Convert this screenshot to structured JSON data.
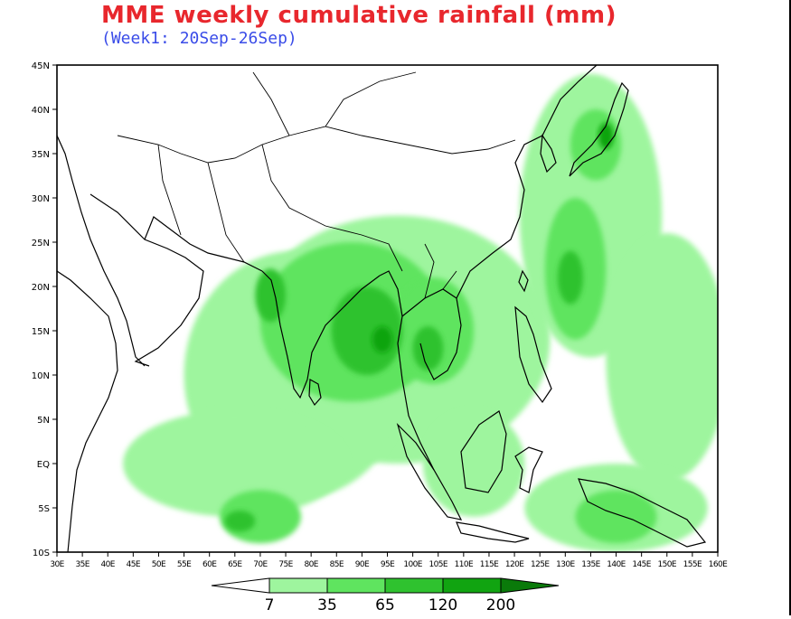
{
  "title": "MME weekly cumulative rainfall (mm)",
  "subtitle": "(Week1: 20Sep-26Sep)",
  "map": {
    "lon_range": [
      30,
      160
    ],
    "lat_range": [
      -10,
      45
    ],
    "lat_labels": [
      "10S",
      "5S",
      "EQ",
      "5N",
      "10N",
      "15N",
      "20N",
      "25N",
      "30N",
      "35N",
      "40N",
      "45N"
    ],
    "lat_values": [
      -10,
      -5,
      0,
      5,
      10,
      15,
      20,
      25,
      30,
      35,
      40,
      45
    ],
    "lon_labels": [
      "30E",
      "35E",
      "40E",
      "45E",
      "50E",
      "55E",
      "60E",
      "65E",
      "70E",
      "75E",
      "80E",
      "85E",
      "90E",
      "95E",
      "100E",
      "105E",
      "110E",
      "115E",
      "120E",
      "125E",
      "130E",
      "135E",
      "140E",
      "145E",
      "150E",
      "155E",
      "160E"
    ],
    "lon_values": [
      30,
      35,
      40,
      45,
      50,
      55,
      60,
      65,
      70,
      75,
      80,
      85,
      90,
      95,
      100,
      105,
      110,
      115,
      120,
      125,
      130,
      135,
      140,
      145,
      150,
      155,
      160
    ]
  },
  "colorbar": {
    "thresholds": [
      "7",
      "35",
      "65",
      "120",
      "200"
    ],
    "colors": [
      "#ffffff",
      "#9ef59e",
      "#5fe45f",
      "#2fc22f",
      "#11a411",
      "#0a7a0a"
    ]
  },
  "rain_regions": [
    {
      "level": 1,
      "lon": 97,
      "lat": 14,
      "rx": 30,
      "ry": 14
    },
    {
      "level": 1,
      "lon": 77,
      "lat": 10,
      "rx": 22,
      "ry": 14
    },
    {
      "level": 1,
      "lon": 135,
      "lat": 28,
      "rx": 14,
      "ry": 16
    },
    {
      "level": 1,
      "lon": 150,
      "lat": 12,
      "rx": 12,
      "ry": 14
    },
    {
      "level": 1,
      "lon": 65,
      "lat": 0,
      "rx": 22,
      "ry": 6
    },
    {
      "level": 1,
      "lon": 140,
      "lat": -5,
      "rx": 18,
      "ry": 5
    },
    {
      "level": 1,
      "lon": 112,
      "lat": 0,
      "rx": 10,
      "ry": 6
    },
    {
      "level": 2,
      "lon": 88,
      "lat": 16,
      "rx": 18,
      "ry": 9
    },
    {
      "level": 2,
      "lon": 104,
      "lat": 15,
      "rx": 8,
      "ry": 6
    },
    {
      "level": 2,
      "lon": 132,
      "lat": 22,
      "rx": 6,
      "ry": 8
    },
    {
      "level": 2,
      "lon": 136,
      "lat": 36,
      "rx": 5,
      "ry": 4
    },
    {
      "level": 2,
      "lon": 70,
      "lat": -6,
      "rx": 8,
      "ry": 3
    },
    {
      "level": 2,
      "lon": 140,
      "lat": -6,
      "rx": 8,
      "ry": 3
    },
    {
      "level": 3,
      "lon": 91,
      "lat": 15,
      "rx": 7,
      "ry": 5
    },
    {
      "level": 3,
      "lon": 72,
      "lat": 19,
      "rx": 3,
      "ry": 3
    },
    {
      "level": 3,
      "lon": 103,
      "lat": 13,
      "rx": 3,
      "ry": 2.5
    },
    {
      "level": 3,
      "lon": 131,
      "lat": 21,
      "rx": 2.5,
      "ry": 3
    },
    {
      "level": 3,
      "lon": 66,
      "lat": -6.5,
      "rx": 3,
      "ry": 1.2
    },
    {
      "level": 4,
      "lon": 94,
      "lat": 14,
      "rx": 2,
      "ry": 1.5
    },
    {
      "level": 4,
      "lon": 138,
      "lat": 37,
      "rx": 1.5,
      "ry": 1.5
    }
  ]
}
